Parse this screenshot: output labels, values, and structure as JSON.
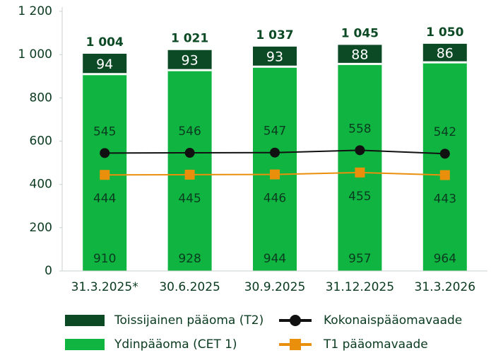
{
  "chart_data": {
    "type": "bar",
    "categories": [
      "31.3.2025*",
      "30.6.2025",
      "30.9.2025",
      "31.12.2025",
      "31.3.2026"
    ],
    "series": [
      {
        "name": "Ydinpääoma (CET 1)",
        "type": "bar",
        "color": "#10b541",
        "values": [
          910,
          928,
          944,
          957,
          964
        ]
      },
      {
        "name": "Toissijainen pääoma (T2)",
        "type": "bar",
        "color": "#0b4a24",
        "values": [
          94,
          93,
          93,
          88,
          86
        ]
      },
      {
        "name": "Kokonaispääomavaade",
        "type": "line",
        "marker": "circle",
        "color": "#111111",
        "values": [
          545,
          546,
          547,
          558,
          542
        ]
      },
      {
        "name": "T1 pääomavaade",
        "type": "line",
        "marker": "square",
        "color": "#ea8f0c",
        "values": [
          444,
          445,
          446,
          455,
          443
        ]
      }
    ],
    "totals": [
      1004,
      1021,
      1037,
      1045,
      1050
    ],
    "total_labels": [
      "1 004",
      "1 021",
      "1 037",
      "1 045",
      "1 050"
    ],
    "ylim": [
      0,
      1200
    ],
    "yticks": [
      0,
      200,
      400,
      600,
      800,
      {
        "value": 1000,
        "label": "1 000"
      },
      {
        "value": 1200,
        "label": "1 200"
      }
    ],
    "grid": false
  }
}
